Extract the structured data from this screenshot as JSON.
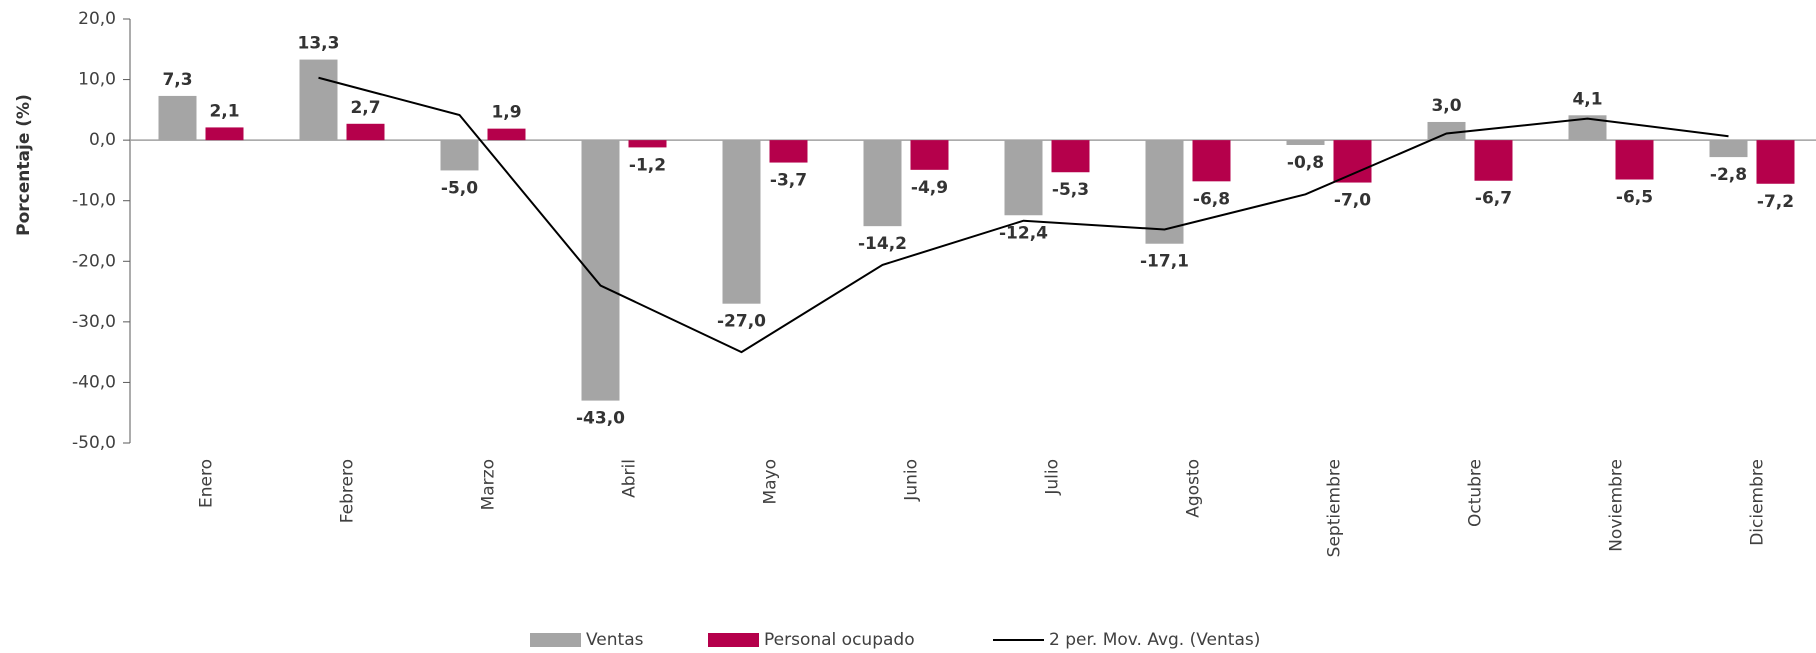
{
  "chart_data": {
    "type": "bar",
    "y_label": "Porcentaje (%)",
    "categories": [
      "Enero",
      "Febrero",
      "Marzo",
      "Abril",
      "Mayo",
      "Junio",
      "Julio",
      "Agosto",
      "Septiembre",
      "Octubre",
      "Noviembre",
      "Diciembre"
    ],
    "series": [
      {
        "name": "Ventas",
        "color": "#a5a5a5",
        "values": [
          7.3,
          13.3,
          -5.0,
          -43.0,
          -27.0,
          -14.2,
          -12.4,
          -17.1,
          -0.8,
          3.0,
          4.1,
          -2.8
        ],
        "value_labels": [
          "7,3",
          "13,3",
          "-5,0",
          "-43,0",
          "-27,0",
          "-14,2",
          "-12,4",
          "-17,1",
          "-0,8",
          "3,0",
          "4,1",
          "-2,8"
        ]
      },
      {
        "name": "Personal ocupado",
        "color": "#b5004b",
        "values": [
          2.1,
          2.7,
          1.9,
          -1.2,
          -3.7,
          -4.9,
          -5.3,
          -6.8,
          -7.0,
          -6.7,
          -6.5,
          -7.2
        ],
        "value_labels": [
          "2,1",
          "2,7",
          "1,9",
          "-1,2",
          "-3,7",
          "-4,9",
          "-5,3",
          "-6,8",
          "-7,0",
          "-6,7",
          "-6,5",
          "-7,2"
        ]
      },
      {
        "name": "2 per. Mov. Avg. (Ventas)",
        "color": "#000000",
        "type": "line",
        "values": [
          null,
          10.3,
          4.15,
          -24.0,
          -35.0,
          -20.6,
          -13.3,
          -14.75,
          -8.95,
          1.1,
          3.55,
          0.65
        ]
      }
    ],
    "ylim": [
      -50,
      20
    ],
    "yticks": [
      {
        "value": -50,
        "label": "-50,0"
      },
      {
        "value": -40,
        "label": "-40,0"
      },
      {
        "value": -30,
        "label": "-30,0"
      },
      {
        "value": -20,
        "label": "-20,0"
      },
      {
        "value": -10,
        "label": "-10,0"
      },
      {
        "value": 0,
        "label": "0,0"
      },
      {
        "value": 10,
        "label": "10,0"
      },
      {
        "value": 20,
        "label": "20,0"
      }
    ]
  }
}
